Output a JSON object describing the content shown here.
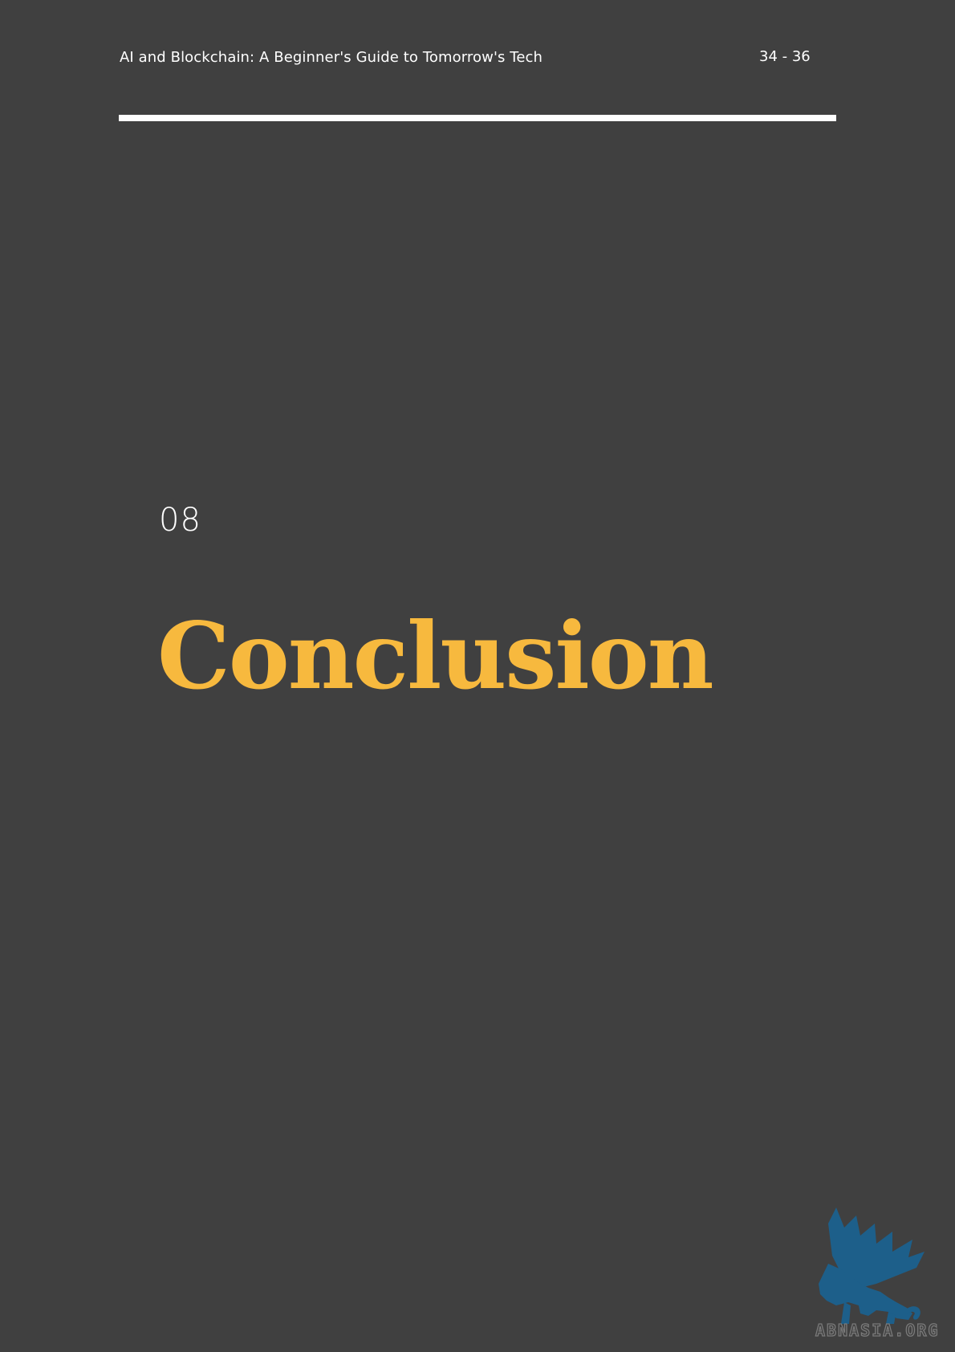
{
  "header": {
    "title": "AI and Blockchain: A Beginner's Guide to Tomorrow's Tech",
    "page_range": "34 - 36"
  },
  "chapter": {
    "number": "08",
    "title": "Conclusion"
  },
  "watermark": {
    "text": "ABNASIA.ORG",
    "icon": "griffin-logo-icon"
  },
  "colors": {
    "background": "#404040",
    "title_accent": "#f7b93e",
    "logo": "#1d5f8a"
  }
}
